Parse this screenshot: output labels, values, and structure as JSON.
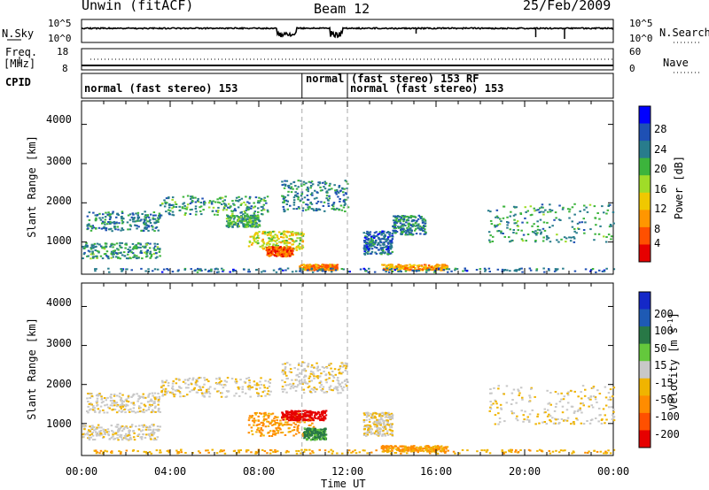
{
  "header": {
    "station": "Unwin (fitACF)",
    "beam": "Beam 12",
    "date": "25/Feb/2009"
  },
  "left_labels": {
    "nsky": "N.Sky",
    "freq": "Freq.",
    "freq_unit": "[MHz]",
    "cpid": "CPID"
  },
  "right_labels": {
    "nsearch": "N.Search",
    "nave": "Nave"
  },
  "noise_panel": {
    "left_ticks": [
      "10^5",
      "10^0"
    ],
    "right_ticks": [
      "10^5",
      "10^0"
    ]
  },
  "freq_panel": {
    "left_ticks": [
      "18",
      "8"
    ],
    "right_ticks": [
      "60",
      "0"
    ]
  },
  "cpid_panel": {
    "segments": [
      {
        "label": "normal (fast stereo) 153",
        "start": 0.0
      },
      {
        "label": "normal",
        "start": 9.9
      },
      {
        "label": "(fast stereo) 153 RF",
        "start": 12.0
      },
      {
        "label": "normal (fast stereo) 153",
        "start": 12.0
      }
    ]
  },
  "x_axis": {
    "label": "Time UT",
    "ticks": [
      "00:00",
      "04:00",
      "08:00",
      "12:00",
      "16:00",
      "20:00",
      "00:00"
    ],
    "range": [
      0,
      24
    ]
  },
  "y_axis": {
    "label": "Slant Range [km]",
    "ticks": [
      "1000",
      "2000",
      "3000",
      "4000"
    ],
    "range": [
      180,
      4600
    ]
  },
  "power_colorbar": {
    "label": "Power [dB]",
    "ticks": [
      "4",
      "8",
      "12",
      "16",
      "20",
      "24",
      "28"
    ],
    "colors": [
      "#0000ff",
      "#1e50b4",
      "#287c8c",
      "#3cb43c",
      "#a0dc28",
      "#f0c800",
      "#ff9600",
      "#ff5000",
      "#e60000"
    ]
  },
  "velocity_colorbar": {
    "label": "Velocity [m s",
    "label_sup": "-1",
    "label_end": "]",
    "ticks": [
      "200",
      "100",
      "50",
      "15",
      "-15",
      "-50",
      "-100",
      "-200"
    ],
    "colors": [
      "#1428c8",
      "#1e5ab4",
      "#287846",
      "#64c83c",
      "#c8c8c8",
      "#f0b400",
      "#ff8c00",
      "#ff5000",
      "#e60000"
    ]
  },
  "chart_data": [
    {
      "type": "heatmap",
      "title": "Power",
      "xlabel": "Time UT",
      "ylabel": "Slant Range [km]",
      "xlim": [
        0,
        24
      ],
      "ylim": [
        180,
        4600
      ],
      "zlabel": "Power [dB]",
      "zlim": [
        0,
        32
      ],
      "scatter_regions": [
        {
          "t": [
            0.2,
            3.5
          ],
          "r": [
            1300,
            1800
          ],
          "level": 10
        },
        {
          "t": [
            3.5,
            8.5
          ],
          "r": [
            1700,
            2200
          ],
          "level": 12
        },
        {
          "t": [
            0.0,
            3.5
          ],
          "r": [
            600,
            1000
          ],
          "level": 12
        },
        {
          "t": [
            6.5,
            8.0
          ],
          "r": [
            1400,
            1700
          ],
          "level": 13
        },
        {
          "t": [
            7.5,
            10.0
          ],
          "r": [
            800,
            1300
          ],
          "level": 20
        },
        {
          "t": [
            8.3,
            9.5
          ],
          "r": [
            650,
            900
          ],
          "level": 29
        },
        {
          "t": [
            9.8,
            11.5
          ],
          "r": [
            300,
            450
          ],
          "level": 27
        },
        {
          "t": [
            9.0,
            12.0
          ],
          "r": [
            1800,
            2600
          ],
          "level": 10
        },
        {
          "t": [
            12.7,
            14.0
          ],
          "r": [
            700,
            1300
          ],
          "level": 8
        },
        {
          "t": [
            14.0,
            15.5
          ],
          "r": [
            1200,
            1700
          ],
          "level": 10
        },
        {
          "t": [
            13.5,
            16.5
          ],
          "r": [
            300,
            450
          ],
          "level": 25
        },
        {
          "t": [
            18.3,
            24.0
          ],
          "r": [
            1000,
            2000
          ],
          "level": 12
        },
        {
          "t": [
            0.5,
            24.0
          ],
          "r": [
            250,
            350
          ],
          "level": 8
        }
      ]
    },
    {
      "type": "heatmap",
      "title": "Velocity",
      "xlabel": "Time UT",
      "ylabel": "Slant Range [km]",
      "xlim": [
        0,
        24
      ],
      "ylim": [
        180,
        4600
      ],
      "zlabel": "Velocity [m s-1]",
      "zlim": [
        -250,
        250
      ],
      "scatter_regions": [
        {
          "t": [
            0.2,
            3.5
          ],
          "r": [
            1300,
            1800
          ],
          "level": -5
        },
        {
          "t": [
            3.5,
            8.5
          ],
          "r": [
            1700,
            2200
          ],
          "level": -10
        },
        {
          "t": [
            0.0,
            3.5
          ],
          "r": [
            600,
            1000
          ],
          "level": -5
        },
        {
          "t": [
            7.5,
            10.5
          ],
          "r": [
            700,
            1300
          ],
          "level": -60
        },
        {
          "t": [
            9.0,
            11.0
          ],
          "r": [
            1100,
            1350
          ],
          "level": -180
        },
        {
          "t": [
            9.0,
            12.0
          ],
          "r": [
            1800,
            2600
          ],
          "level": -5
        },
        {
          "t": [
            10.0,
            11.0
          ],
          "r": [
            600,
            900
          ],
          "level": 40
        },
        {
          "t": [
            12.7,
            14.0
          ],
          "r": [
            700,
            1300
          ],
          "level": -10
        },
        {
          "t": [
            13.5,
            16.5
          ],
          "r": [
            300,
            450
          ],
          "level": -60
        },
        {
          "t": [
            18.3,
            24.0
          ],
          "r": [
            1000,
            2000
          ],
          "level": -10
        },
        {
          "t": [
            0.5,
            24.0
          ],
          "r": [
            250,
            350
          ],
          "level": -40
        }
      ]
    }
  ]
}
